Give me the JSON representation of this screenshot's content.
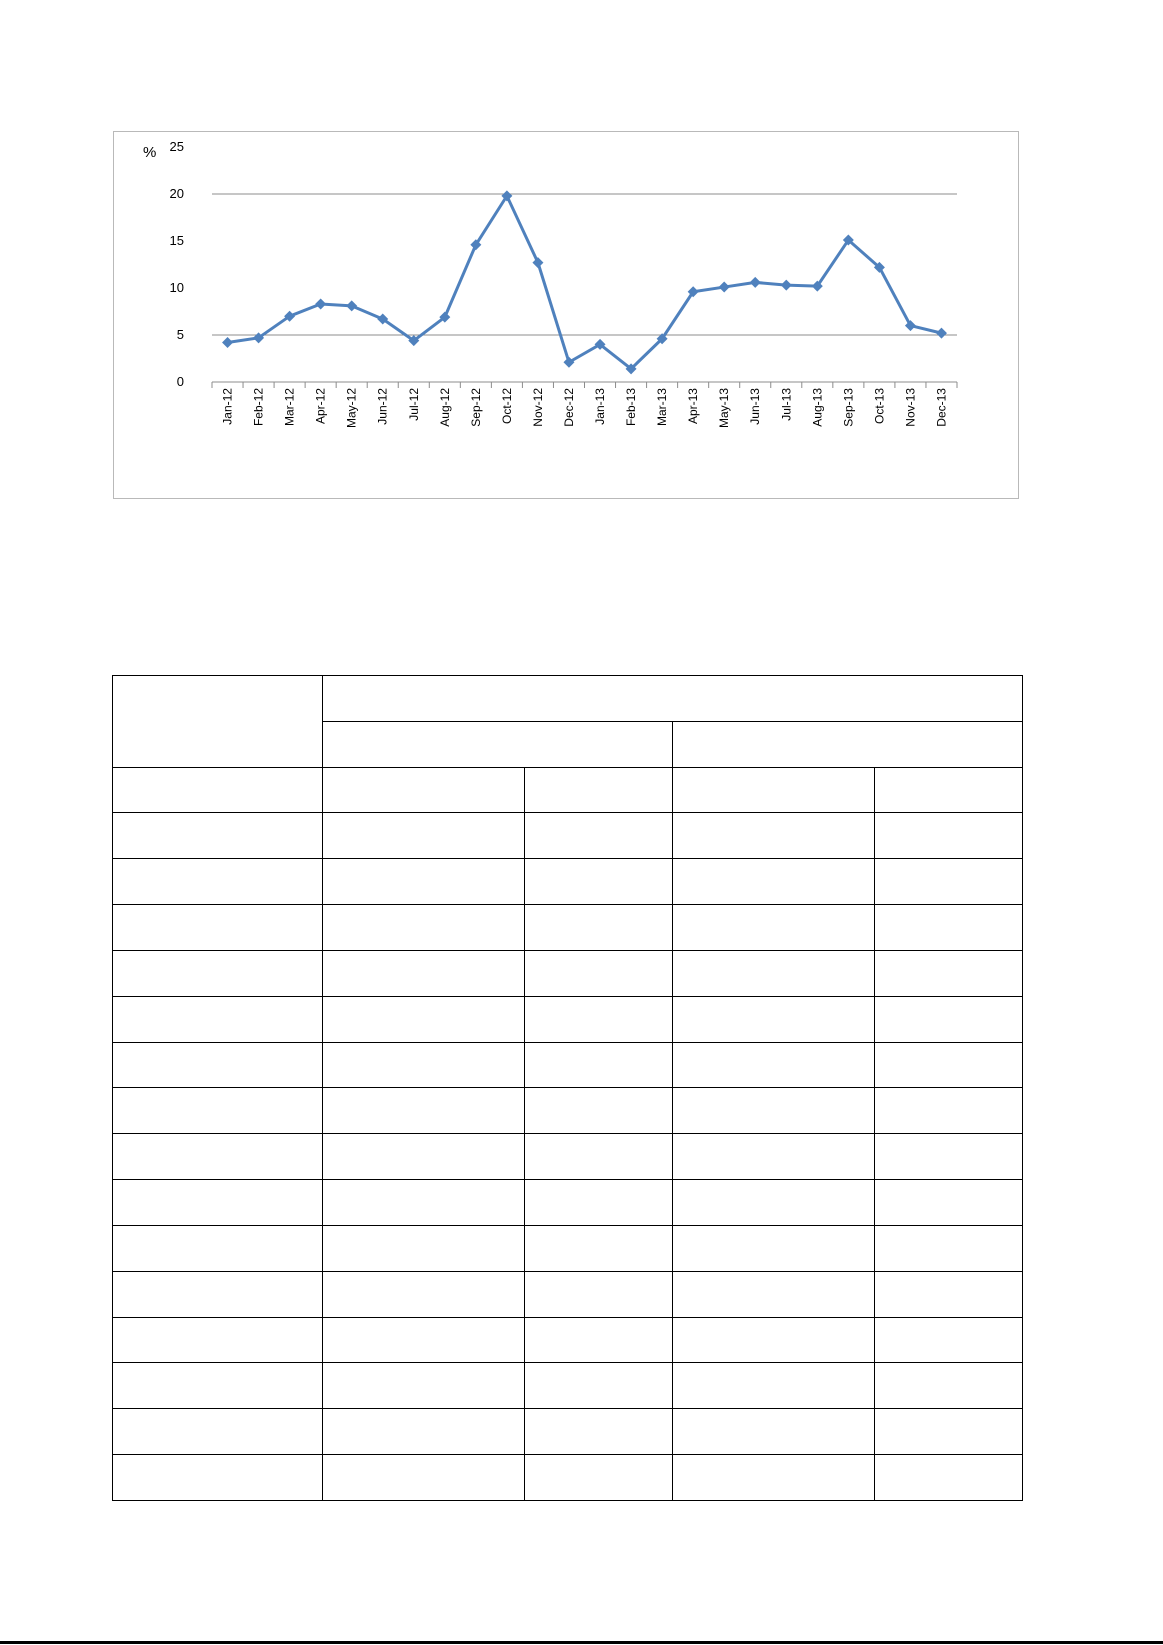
{
  "chart_data": {
    "type": "line",
    "ylabel": "%",
    "ylim": [
      0,
      25
    ],
    "yticks": [
      0,
      5,
      10,
      15,
      20,
      25
    ],
    "grid_lines": [
      5,
      20
    ],
    "color": "#4f81bd",
    "categories": [
      "Jan-12",
      "Feb-12",
      "Mar-12",
      "Apr-12",
      "May-12",
      "Jun-12",
      "Jul-12",
      "Aug-12",
      "Sep-12",
      "Oct-12",
      "Nov-12",
      "Dec-12",
      "Jan-13",
      "Feb-13",
      "Mar-13",
      "Apr-13",
      "May-13",
      "Jun-13",
      "Jul-13",
      "Aug-13",
      "Sep-13",
      "Oct-13",
      "Nov-13",
      "Dec-13"
    ],
    "series": [
      {
        "values": [
          4.2,
          4.7,
          7.0,
          8.3,
          8.1,
          6.7,
          4.4,
          6.9,
          14.6,
          19.8,
          12.7,
          2.1,
          4.0,
          1.4,
          4.6,
          9.6,
          10.1,
          10.6,
          10.3,
          10.2,
          15.1,
          12.2,
          6.0,
          5.2
        ]
      }
    ]
  },
  "table": {
    "rows": 18,
    "cols": 5
  }
}
